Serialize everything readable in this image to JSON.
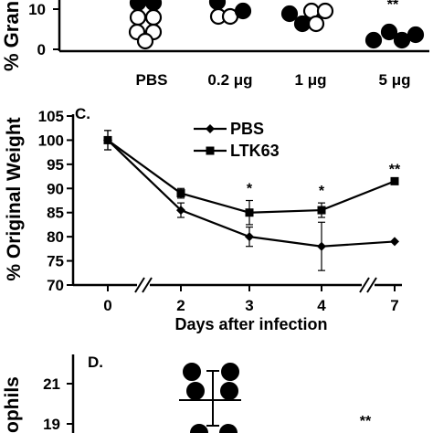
{
  "panel_b": {
    "ylabel": "% Gran",
    "y_ticks": [
      "10",
      "0"
    ],
    "groups": [
      "PBS",
      "0.2 μg",
      "1 μg",
      "5 μg"
    ],
    "significance": "**"
  },
  "chart_data": [
    {
      "panel": "C.",
      "type": "line",
      "xlabel": "Days after infection",
      "ylabel": "% Original Weight",
      "x_tick_labels": [
        "0",
        "2",
        "3",
        "4",
        "7"
      ],
      "ylim": [
        70,
        105
      ],
      "y_ticks": [
        70,
        75,
        80,
        85,
        90,
        95,
        100,
        105
      ],
      "axis_breaks": "between 0 and 2, and between 4 and 7 on the x axis",
      "legend_position": "top-center",
      "series": [
        {
          "name": "PBS",
          "marker": "diamond",
          "values": [
            100,
            85.5,
            80,
            78,
            79
          ],
          "errors": [
            2,
            1.5,
            2,
            5,
            0
          ]
        },
        {
          "name": "LTK63",
          "marker": "square",
          "values": [
            100,
            89,
            85,
            85.5,
            91.5
          ],
          "errors": [
            2,
            1,
            2.5,
            1.5,
            0
          ]
        }
      ],
      "annotations": [
        {
          "x_index": 2,
          "text": "*"
        },
        {
          "x_index": 3,
          "text": "*"
        },
        {
          "x_index": 4,
          "text": "**"
        }
      ]
    }
  ],
  "panel_d": {
    "label": "D.",
    "ylabel": "ophils",
    "y_ticks": [
      "21",
      "19"
    ],
    "significance": "**"
  }
}
